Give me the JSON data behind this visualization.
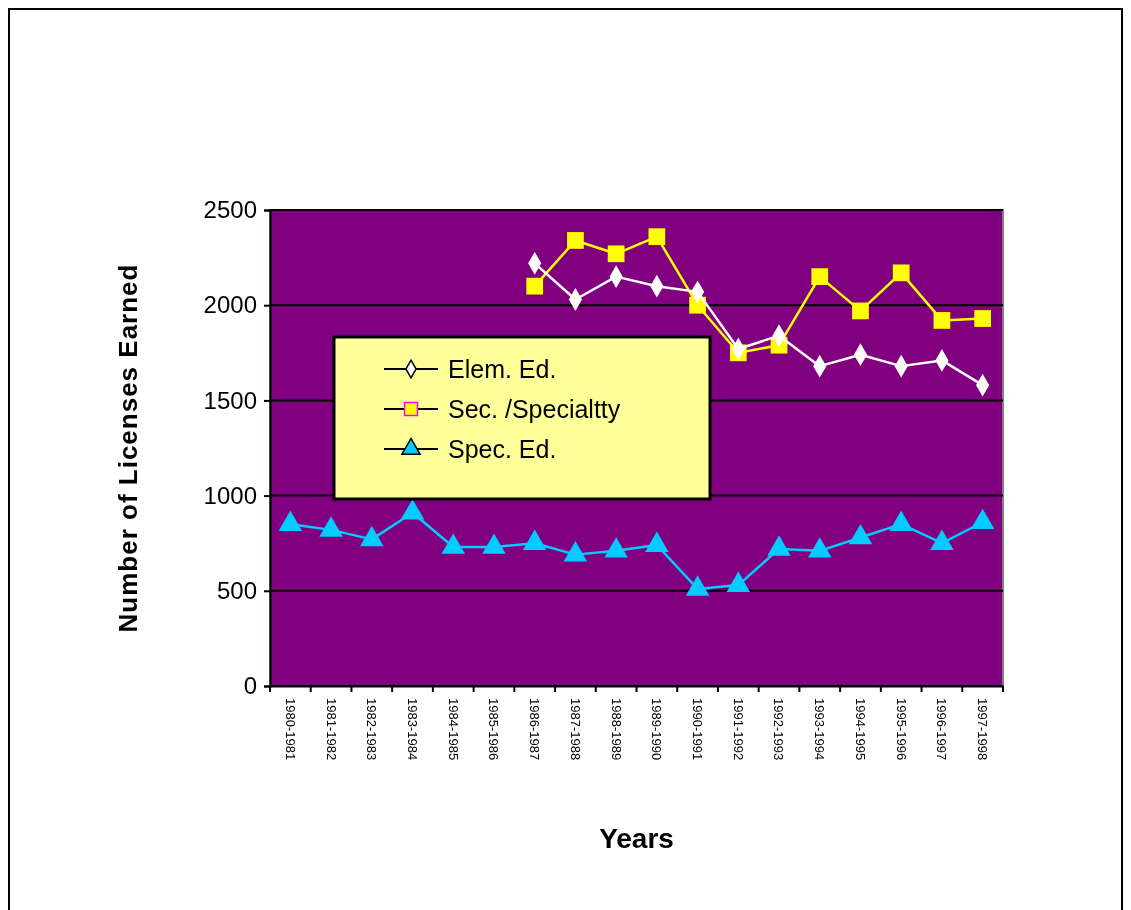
{
  "chart_data": {
    "type": "line",
    "xlabel": "Years",
    "ylabel": "Number of Licenses Earned",
    "categories": [
      "1980-1981",
      "1981-1982",
      "1982-1983",
      "1983-1984",
      "1984-1985",
      "1985-1986",
      "1986-1987",
      "1987-1988",
      "1988-1989",
      "1989-1990",
      "1990-1991",
      "1991-1992",
      "1992-1993",
      "1993-1994",
      "1994-1995",
      "1995-1996",
      "1996-1997",
      "1997-1998"
    ],
    "series": [
      {
        "name": "Elem. Ed.",
        "color": "#ffffff",
        "marker": "diamond",
        "values": [
          null,
          null,
          null,
          null,
          null,
          null,
          2220,
          2030,
          2150,
          2100,
          2070,
          1770,
          1840,
          1680,
          1740,
          1680,
          1710,
          1580
        ]
      },
      {
        "name": "Sec. /Specialtty",
        "color": "#ffff00",
        "marker": "square",
        "values": [
          null,
          null,
          null,
          null,
          null,
          null,
          2100,
          2340,
          2270,
          2360,
          2000,
          1750,
          1790,
          2150,
          1970,
          2170,
          1920,
          1930
        ]
      },
      {
        "name": "Spec. Ed.",
        "color": "#00ccff",
        "marker": "triangle",
        "values": [
          850,
          820,
          770,
          910,
          730,
          730,
          750,
          690,
          710,
          740,
          510,
          530,
          720,
          710,
          780,
          850,
          750,
          860
        ]
      }
    ],
    "ylim": [
      0,
      2500
    ],
    "yticks": [
      0,
      500,
      1000,
      1500,
      2000,
      2500
    ],
    "grid": "y",
    "legend": "center"
  }
}
